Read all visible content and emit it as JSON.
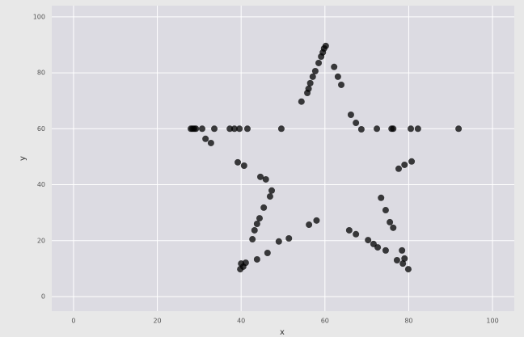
{
  "chart_data": {
    "type": "scatter",
    "xlabel": "x",
    "ylabel": "y",
    "x": [
      60.2,
      59.8,
      59.5,
      59.1,
      58.5,
      57.7,
      57.1,
      56.5,
      56.1,
      55.8,
      54.4,
      62.2,
      63.1,
      63.9,
      66.2,
      67.4,
      68.7,
      28.0,
      28.4,
      28.8,
      29.2,
      30.7,
      33.6,
      37.3,
      38.4,
      39.6,
      41.5,
      49.6,
      72.4,
      75.9,
      76.3,
      80.5,
      82.2,
      91.9,
      31.5,
      32.8,
      39.2,
      40.7,
      44.6,
      45.9,
      47.3,
      46.9,
      45.4,
      44.4,
      43.8,
      43.2,
      42.7,
      40.0,
      40.5,
      41.1,
      39.8,
      43.8,
      46.3,
      49.0,
      51.4,
      56.2,
      58.0,
      77.6,
      79.0,
      80.7,
      73.4,
      74.5,
      75.5,
      76.3,
      78.4,
      79.0,
      79.9,
      65.8,
      67.4,
      70.3,
      71.6,
      72.6,
      74.5,
      77.2,
      78.6
    ],
    "values": [
      89.6,
      88.7,
      87.3,
      85.8,
      83.5,
      80.6,
      78.6,
      76.3,
      74.3,
      72.8,
      69.7,
      82.1,
      78.6,
      75.7,
      65.0,
      62.1,
      59.8,
      60.0,
      60.0,
      60.0,
      60.0,
      60.0,
      60.0,
      60.0,
      60.0,
      60.0,
      60.0,
      60.0,
      60.0,
      60.0,
      60.0,
      60.0,
      60.0,
      60.0,
      56.4,
      54.9,
      48.0,
      46.8,
      42.8,
      41.9,
      37.9,
      35.8,
      31.8,
      28.0,
      26.0,
      23.7,
      20.5,
      11.8,
      10.7,
      12.1,
      9.8,
      13.3,
      15.6,
      19.7,
      20.8,
      25.7,
      27.2,
      45.7,
      47.1,
      48.3,
      35.3,
      30.9,
      26.6,
      24.6,
      16.5,
      13.6,
      9.8,
      23.7,
      22.3,
      20.2,
      18.8,
      17.6,
      16.5,
      13.0,
      11.8
    ],
    "color": "#000000",
    "xlim": [
      -5.2,
      105.2
    ],
    "ylim": [
      -5.2,
      104
    ],
    "xticks": [
      0,
      20,
      40,
      60,
      80,
      100
    ],
    "yticks": [
      0,
      20,
      40,
      60,
      80,
      100
    ],
    "grid": true
  }
}
